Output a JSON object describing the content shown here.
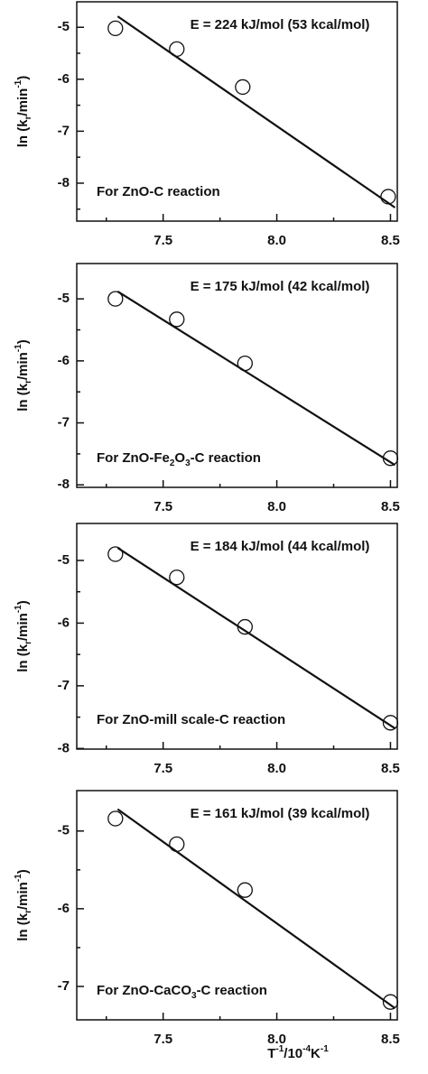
{
  "chart_data": [
    {
      "type": "scatter",
      "y_label": [
        "ln (k",
        "r",
        "/min",
        "-1",
        ")"
      ],
      "annotation": "E = 224 kJ/mol (53 kcal/mol)",
      "note": [
        "For ZnO-C reaction"
      ],
      "x": [
        7.29,
        7.56,
        7.85,
        8.49
      ],
      "values": [
        -5.02,
        -5.42,
        -6.15,
        -8.26
      ],
      "fit": {
        "x": [
          7.3,
          8.52
        ],
        "y": [
          -4.79,
          -8.47
        ]
      },
      "xlim": [
        7.12,
        8.53
      ],
      "xticks": [
        7.5,
        {
          "value": 8,
          "label": "8.0"
        },
        8.5
      ],
      "x_minor_ticks": [
        7.25,
        7.75,
        8.25
      ],
      "ylim": [
        -8.73,
        -4.51
      ],
      "yticks": [
        -5,
        -6,
        -7,
        -8
      ],
      "y_minor_ticks": [
        -5.5,
        -6.5,
        -7.5,
        -8.5
      ]
    },
    {
      "type": "scatter",
      "y_label": [
        "ln (k",
        "r",
        "/min",
        "-1",
        ")"
      ],
      "annotation": "E = 175 kJ/mol (42 kcal/mol)",
      "note": [
        "For ZnO-Fe",
        "2",
        "O",
        "3",
        "-C reaction"
      ],
      "x": [
        7.29,
        7.56,
        7.86,
        8.5
      ],
      "values": [
        -5.0,
        -5.33,
        -6.04,
        -7.57
      ],
      "fit": {
        "x": [
          7.3,
          8.52
        ],
        "y": [
          -4.88,
          -7.68
        ]
      },
      "xlim": [
        7.12,
        8.53
      ],
      "xticks": [
        7.5,
        {
          "value": 8,
          "label": "8.0"
        },
        8.5
      ],
      "x_minor_ticks": [
        7.25,
        7.75,
        8.25
      ],
      "ylim": [
        -8.04,
        -4.43
      ],
      "yticks": [
        -5,
        -6,
        -7,
        -8
      ],
      "y_minor_ticks": [
        -5.5,
        -6.5,
        -7.5
      ]
    },
    {
      "type": "scatter",
      "y_label": [
        "ln (k",
        "r",
        "/min",
        "-1",
        ")"
      ],
      "annotation": "E = 184 kJ/mol (44 kcal/mol)",
      "note": [
        "For ZnO-mill scale-C reaction"
      ],
      "x": [
        7.29,
        7.56,
        7.86,
        8.5
      ],
      "values": [
        -4.9,
        -5.27,
        -6.06,
        -7.59
      ],
      "fit": {
        "x": [
          7.3,
          8.52
        ],
        "y": [
          -4.8,
          -7.68
        ]
      },
      "xlim": [
        7.12,
        8.53
      ],
      "xticks": [
        7.5,
        {
          "value": 8,
          "label": "8.0"
        },
        8.5
      ],
      "x_minor_ticks": [
        7.25,
        7.75,
        8.25
      ],
      "ylim": [
        -8.01,
        -4.41
      ],
      "yticks": [
        -5,
        -6,
        -7,
        -8
      ],
      "y_minor_ticks": [
        -5.5,
        -6.5,
        -7.5
      ]
    },
    {
      "type": "scatter",
      "y_label": [
        "ln (k",
        "r",
        "/min",
        "-1",
        ")"
      ],
      "annotation": "E = 161 kJ/mol (39 kcal/mol)",
      "note": [
        "For ZnO-CaCO",
        "3",
        "-C reaction"
      ],
      "x": [
        7.29,
        7.56,
        7.86,
        8.5
      ],
      "values": [
        -4.84,
        -5.17,
        -5.76,
        -7.2
      ],
      "fit": {
        "x": [
          7.3,
          8.52
        ],
        "y": [
          -4.72,
          -7.28
        ]
      },
      "xlim": [
        7.12,
        8.53
      ],
      "xticks": [
        7.5,
        {
          "value": 8,
          "label": "8.0"
        },
        8.5
      ],
      "x_minor_ticks": [
        7.25,
        7.75,
        8.25
      ],
      "ylim": [
        -7.43,
        -4.48
      ],
      "yticks": [
        -5,
        -6,
        -7
      ],
      "y_minor_ticks": [
        -5.5,
        -6.5
      ],
      "x_label": [
        "T",
        "-1",
        "/10",
        "-4",
        "K",
        "-1"
      ]
    }
  ]
}
